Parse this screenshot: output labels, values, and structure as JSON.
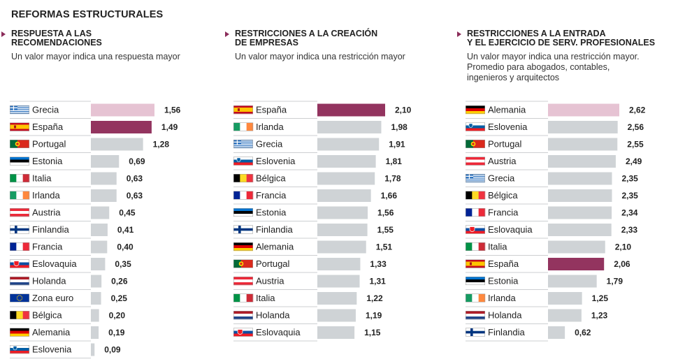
{
  "title": "REFORMAS ESTRUCTURALES",
  "colors": {
    "bar": "#cfd3d6",
    "highlight": "#93345f",
    "highlight_light": "#e6c3d3",
    "rule": "#bcbfc2",
    "arrow": "#8b2c5a"
  },
  "chart_data": [
    {
      "type": "bar",
      "title": "RESPUESTA A LAS\nRECOMENDACIONES",
      "subtitle": "Un valor mayor indica una respuesta mayor",
      "categories": [
        "Grecia",
        "España",
        "Portugal",
        "Estonia",
        "Italia",
        "Irlanda",
        "Austria",
        "Finlandia",
        "Francia",
        "Eslovaquia",
        "Holanda",
        "Zona euro",
        "Bélgica",
        "Alemania",
        "Eslovenia"
      ],
      "values": [
        1.56,
        1.49,
        1.28,
        0.69,
        0.63,
        0.63,
        0.45,
        0.41,
        0.4,
        0.35,
        0.26,
        0.25,
        0.2,
        0.19,
        0.09
      ],
      "value_labels": [
        "1,56",
        "1,49",
        "1,28",
        "0,69",
        "0,63",
        "0,63",
        "0,45",
        "0,41",
        "0,40",
        "0,35",
        "0,26",
        "0,25",
        "0,20",
        "0,19",
        "0,09"
      ],
      "flags": [
        "greece",
        "spain",
        "portugal",
        "estonia",
        "italy",
        "ireland",
        "austria",
        "finland",
        "france",
        "slovakia",
        "netherlands",
        "eu",
        "belgium",
        "germany",
        "slovenia"
      ],
      "highlight": {
        "1": "highlight",
        "0": "highlight_light"
      },
      "xlim": [
        0,
        1.56
      ]
    },
    {
      "type": "bar",
      "title": "RESTRICCIONES A LA CREACIÓN\nDE EMPRESAS",
      "subtitle": "Un valor mayor indica una restricción mayor",
      "categories": [
        "España",
        "Irlanda",
        "Grecia",
        "Eslovenia",
        "Bélgica",
        "Francia",
        "Estonia",
        "Finlandia",
        "Alemania",
        "Portugal",
        "Austria",
        "Italia",
        "Holanda",
        "Eslovaquia"
      ],
      "values": [
        2.1,
        1.98,
        1.91,
        1.81,
        1.78,
        1.66,
        1.56,
        1.55,
        1.51,
        1.33,
        1.31,
        1.22,
        1.19,
        1.15
      ],
      "value_labels": [
        "2,10",
        "1,98",
        "1,91",
        "1,81",
        "1,78",
        "1,66",
        "1,56",
        "1,55",
        "1,51",
        "1,33",
        "1,31",
        "1,22",
        "1,19",
        "1,15"
      ],
      "flags": [
        "spain",
        "ireland",
        "greece",
        "slovenia",
        "belgium",
        "france",
        "estonia",
        "finland",
        "germany",
        "portugal",
        "austria",
        "italy",
        "netherlands",
        "slovakia"
      ],
      "highlight": {
        "0": "highlight"
      },
      "xlim": [
        0,
        2.1
      ]
    },
    {
      "type": "bar",
      "title": "RESTRICCIONES A LA ENTRADA\nY EL EJERCICIO DE SERV. PROFESIONALES",
      "subtitle": "Un valor mayor indica una restricción mayor.\nPromedio para abogados, contables,\ningenieros y arquitectos",
      "categories": [
        "Alemania",
        "Eslovenia",
        "Portugal",
        "Austria",
        "Grecia",
        "Bélgica",
        "Francia",
        "Eslovaquia",
        "Italia",
        "España",
        "Estonia",
        "Irlanda",
        "Holanda",
        "Finlandia"
      ],
      "values": [
        2.62,
        2.56,
        2.55,
        2.49,
        2.35,
        2.35,
        2.34,
        2.33,
        2.1,
        2.06,
        1.79,
        1.25,
        1.23,
        0.62
      ],
      "value_labels": [
        "2,62",
        "2,56",
        "2,55",
        "2,49",
        "2,35",
        "2,35",
        "2,34",
        "2,33",
        "2,10",
        "2,06",
        "1,79",
        "1,25",
        "1,23",
        "0,62"
      ],
      "flags": [
        "germany",
        "slovenia",
        "portugal",
        "austria",
        "greece",
        "belgium",
        "france",
        "slovakia",
        "italy",
        "spain",
        "estonia",
        "ireland",
        "netherlands",
        "finland"
      ],
      "highlight": {
        "9": "highlight",
        "0": "highlight_light"
      },
      "xlim": [
        0,
        2.62
      ]
    }
  ]
}
